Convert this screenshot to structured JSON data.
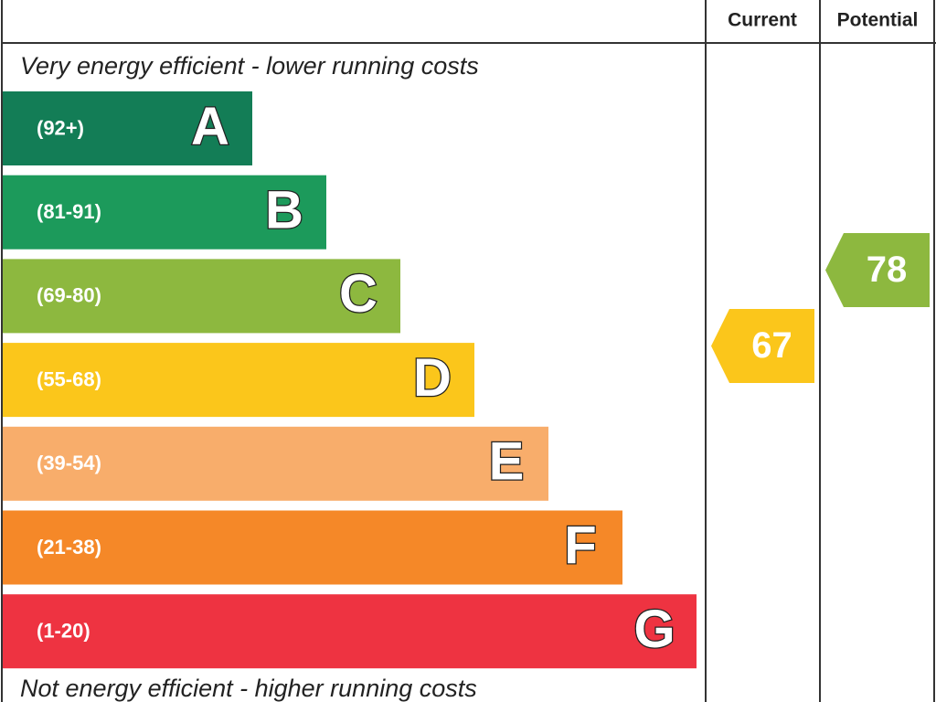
{
  "header": {
    "current": "Current",
    "potential": "Potential"
  },
  "top_note": "Very energy efficient - lower running costs",
  "bottom_note": "Not energy efficient - higher running costs",
  "bands": [
    {
      "range": "(92+)",
      "letter": "A",
      "color": "#137d56"
    },
    {
      "range": "(81-91)",
      "letter": "B",
      "color": "#1c9a5b"
    },
    {
      "range": "(69-80)",
      "letter": "C",
      "color": "#8db83f"
    },
    {
      "range": "(55-68)",
      "letter": "D",
      "color": "#fbc61b"
    },
    {
      "range": "(39-54)",
      "letter": "E",
      "color": "#f8ad6b"
    },
    {
      "range": "(21-38)",
      "letter": "F",
      "color": "#f58828"
    },
    {
      "range": "(1-20)",
      "letter": "G",
      "color": "#ee3341"
    }
  ],
  "current": {
    "value": "67",
    "color": "#fbc61b"
  },
  "potential": {
    "value": "78",
    "color": "#8db83f"
  }
}
